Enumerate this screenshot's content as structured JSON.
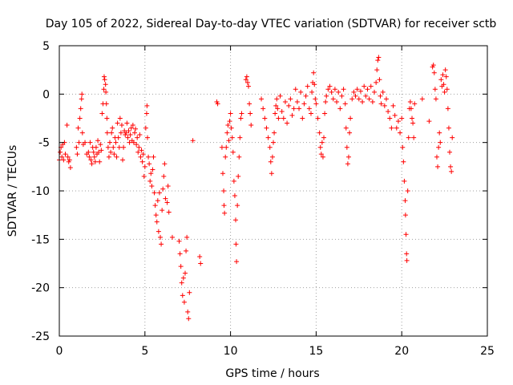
{
  "chart_data": {
    "type": "scatter",
    "title": "Day 105 of 2022, Sidereal Day-to-day VTEC variation (SDTVAR) for receiver sctb",
    "xlabel": "GPS time / hours",
    "ylabel": "SDTVAR / TECUs",
    "xlim": [
      0,
      25
    ],
    "ylim": [
      -25,
      5
    ],
    "xticks": [
      0,
      5,
      10,
      15,
      20,
      25
    ],
    "xtick_labels": [
      "0",
      "5",
      "10",
      "15",
      "20",
      "25"
    ],
    "yticks": [
      -25,
      -20,
      -15,
      -10,
      -5,
      0,
      5
    ],
    "ytick_labels": [
      "-25",
      "-20",
      "-15",
      "-10",
      "-5",
      "0",
      "5"
    ],
    "grid": true,
    "marker": "+",
    "color": "#ff0000",
    "series": [
      {
        "name": "sctb",
        "points": [
          [
            0.0,
            -6.8
          ],
          [
            0.05,
            -6.0
          ],
          [
            0.1,
            -5.5
          ],
          [
            0.15,
            -6.5
          ],
          [
            0.2,
            -5.2
          ],
          [
            0.25,
            -6.8
          ],
          [
            0.3,
            -5.0
          ],
          [
            0.35,
            -6.2
          ],
          [
            0.45,
            -3.2
          ],
          [
            0.5,
            -6.5
          ],
          [
            0.55,
            -7.0
          ],
          [
            0.6,
            -6.8
          ],
          [
            0.65,
            -7.6
          ],
          [
            1.0,
            -5.5
          ],
          [
            1.05,
            -6.2
          ],
          [
            1.1,
            -3.5
          ],
          [
            1.15,
            -5.0
          ],
          [
            1.2,
            -2.5
          ],
          [
            1.25,
            -1.5
          ],
          [
            1.3,
            -0.5
          ],
          [
            1.32,
            0.0
          ],
          [
            1.35,
            -4.0
          ],
          [
            1.4,
            -5.2
          ],
          [
            1.5,
            -5.0
          ],
          [
            1.6,
            -6.2
          ],
          [
            1.7,
            -6.0
          ],
          [
            1.75,
            -6.5
          ],
          [
            1.8,
            -5.0
          ],
          [
            1.85,
            -6.8
          ],
          [
            1.9,
            -7.2
          ],
          [
            1.95,
            -5.5
          ],
          [
            2.0,
            -6.0
          ],
          [
            2.05,
            -6.5
          ],
          [
            2.1,
            -7.0
          ],
          [
            2.15,
            -5.5
          ],
          [
            2.2,
            -6.2
          ],
          [
            2.25,
            -4.8
          ],
          [
            2.3,
            -6.0
          ],
          [
            2.35,
            -7.0
          ],
          [
            2.4,
            -5.2
          ],
          [
            2.45,
            -5.8
          ],
          [
            2.5,
            -2.0
          ],
          [
            2.55,
            -1.0
          ],
          [
            2.6,
            0.5
          ],
          [
            2.62,
            1.8
          ],
          [
            2.65,
            1.5
          ],
          [
            2.7,
            1.0
          ],
          [
            2.72,
            0.2
          ],
          [
            2.75,
            -1.0
          ],
          [
            2.78,
            -2.5
          ],
          [
            2.8,
            -4.0
          ],
          [
            2.85,
            -5.5
          ],
          [
            2.9,
            -6.5
          ],
          [
            2.95,
            -5.0
          ],
          [
            3.0,
            -6.0
          ],
          [
            3.05,
            -4.0
          ],
          [
            3.1,
            -3.5
          ],
          [
            3.15,
            -5.5
          ],
          [
            3.2,
            -6.2
          ],
          [
            3.25,
            -4.5
          ],
          [
            3.3,
            -5.0
          ],
          [
            3.35,
            -6.5
          ],
          [
            3.4,
            -3.0
          ],
          [
            3.45,
            -4.5
          ],
          [
            3.5,
            -5.5
          ],
          [
            3.55,
            -2.5
          ],
          [
            3.6,
            -4.0
          ],
          [
            3.65,
            -3.2
          ],
          [
            3.7,
            -6.8
          ],
          [
            3.75,
            -5.5
          ],
          [
            3.8,
            -3.8
          ],
          [
            3.85,
            -4.2
          ],
          [
            3.9,
            -4.0
          ],
          [
            3.95,
            -3.0
          ],
          [
            4.0,
            -4.5
          ],
          [
            4.05,
            -3.8
          ],
          [
            4.1,
            -5.0
          ],
          [
            4.15,
            -4.2
          ],
          [
            4.2,
            -3.5
          ],
          [
            4.25,
            -4.8
          ],
          [
            4.3,
            -3.2
          ],
          [
            4.35,
            -5.0
          ],
          [
            4.4,
            -4.0
          ],
          [
            4.45,
            -3.6
          ],
          [
            4.5,
            -5.2
          ],
          [
            4.55,
            -4.5
          ],
          [
            4.6,
            -6.0
          ],
          [
            4.65,
            -5.5
          ],
          [
            4.7,
            -4.2
          ],
          [
            4.75,
            -6.5
          ],
          [
            4.8,
            -5.8
          ],
          [
            4.85,
            -7.0
          ],
          [
            4.9,
            -6.2
          ],
          [
            4.95,
            -8.5
          ],
          [
            5.0,
            -7.5
          ],
          [
            5.05,
            -3.5
          ],
          [
            5.1,
            -2.0
          ],
          [
            5.12,
            -1.2
          ],
          [
            5.15,
            -4.5
          ],
          [
            5.2,
            -6.5
          ],
          [
            5.25,
            -7.2
          ],
          [
            5.3,
            -9.0
          ],
          [
            5.35,
            -8.2
          ],
          [
            5.4,
            -9.5
          ],
          [
            5.45,
            -7.8
          ],
          [
            5.5,
            -6.5
          ],
          [
            5.55,
            -10.2
          ],
          [
            5.6,
            -11.5
          ],
          [
            5.65,
            -12.5
          ],
          [
            5.7,
            -13.2
          ],
          [
            5.75,
            -11.0
          ],
          [
            5.8,
            -14.2
          ],
          [
            5.85,
            -10.2
          ],
          [
            5.9,
            -14.8
          ],
          [
            5.95,
            -15.5
          ],
          [
            6.0,
            -12.0
          ],
          [
            6.05,
            -9.8
          ],
          [
            6.1,
            -8.5
          ],
          [
            6.15,
            -7.2
          ],
          [
            6.2,
            -10.8
          ],
          [
            6.3,
            -11.2
          ],
          [
            6.35,
            -9.5
          ],
          [
            6.4,
            -12.2
          ],
          [
            6.6,
            -14.8
          ],
          [
            7.0,
            -15.2
          ],
          [
            7.05,
            -16.5
          ],
          [
            7.1,
            -17.8
          ],
          [
            7.15,
            -19.5
          ],
          [
            7.2,
            -20.8
          ],
          [
            7.25,
            -19.0
          ],
          [
            7.3,
            -21.5
          ],
          [
            7.35,
            -18.5
          ],
          [
            7.4,
            -16.2
          ],
          [
            7.45,
            -14.8
          ],
          [
            7.5,
            -22.5
          ],
          [
            7.55,
            -23.2
          ],
          [
            7.6,
            -20.5
          ],
          [
            7.8,
            -4.8
          ],
          [
            8.2,
            -16.8
          ],
          [
            8.25,
            -17.5
          ],
          [
            9.2,
            -0.8
          ],
          [
            9.25,
            -1.0
          ],
          [
            9.5,
            -5.5
          ],
          [
            9.55,
            -8.2
          ],
          [
            9.6,
            -10.0
          ],
          [
            9.62,
            -11.5
          ],
          [
            9.65,
            -12.3
          ],
          [
            9.7,
            -6.5
          ],
          [
            9.75,
            -5.5
          ],
          [
            9.8,
            -4.0
          ],
          [
            9.85,
            -3.2
          ],
          [
            9.9,
            -4.8
          ],
          [
            9.95,
            -2.8
          ],
          [
            10.0,
            -2.0
          ],
          [
            10.05,
            -3.5
          ],
          [
            10.1,
            -4.5
          ],
          [
            10.15,
            -6.0
          ],
          [
            10.2,
            -9.0
          ],
          [
            10.25,
            -10.5
          ],
          [
            10.3,
            -13.0
          ],
          [
            10.32,
            -15.5
          ],
          [
            10.35,
            -17.3
          ],
          [
            10.4,
            -11.5
          ],
          [
            10.45,
            -8.5
          ],
          [
            10.5,
            -6.5
          ],
          [
            10.55,
            -4.5
          ],
          [
            10.6,
            -2.5
          ],
          [
            10.65,
            -2.0
          ],
          [
            10.9,
            1.5
          ],
          [
            10.95,
            1.8
          ],
          [
            11.0,
            1.2
          ],
          [
            11.05,
            0.8
          ],
          [
            11.1,
            -1.0
          ],
          [
            11.15,
            -2.0
          ],
          [
            11.2,
            -3.2
          ],
          [
            11.8,
            -0.5
          ],
          [
            11.9,
            -1.5
          ],
          [
            12.0,
            -2.5
          ],
          [
            12.1,
            -3.5
          ],
          [
            12.2,
            -4.5
          ],
          [
            12.3,
            -5.5
          ],
          [
            12.35,
            -7.0
          ],
          [
            12.4,
            -8.2
          ],
          [
            12.45,
            -6.5
          ],
          [
            12.5,
            -5.0
          ],
          [
            12.55,
            -4.0
          ],
          [
            12.6,
            -2.0
          ],
          [
            12.65,
            -1.2
          ],
          [
            12.7,
            -0.5
          ],
          [
            12.75,
            -1.5
          ],
          [
            12.8,
            -2.5
          ],
          [
            12.9,
            -0.2
          ],
          [
            13.0,
            -1.8
          ],
          [
            13.1,
            -2.5
          ],
          [
            13.2,
            -0.8
          ],
          [
            13.3,
            -3.0
          ],
          [
            13.4,
            -1.2
          ],
          [
            13.5,
            -0.5
          ],
          [
            13.6,
            -2.2
          ],
          [
            13.7,
            -1.5
          ],
          [
            13.8,
            0.5
          ],
          [
            13.9,
            -0.8
          ],
          [
            14.0,
            -1.5
          ],
          [
            14.1,
            0.2
          ],
          [
            14.2,
            -2.5
          ],
          [
            14.3,
            -1.0
          ],
          [
            14.4,
            -0.2
          ],
          [
            14.5,
            0.8
          ],
          [
            14.6,
            -1.5
          ],
          [
            14.7,
            -2.0
          ],
          [
            14.75,
            0.2
          ],
          [
            14.8,
            1.2
          ],
          [
            14.85,
            2.2
          ],
          [
            14.9,
            1.0
          ],
          [
            14.95,
            -0.5
          ],
          [
            15.0,
            -1.0
          ],
          [
            15.1,
            -2.5
          ],
          [
            15.2,
            -4.0
          ],
          [
            15.25,
            -5.5
          ],
          [
            15.3,
            -6.2
          ],
          [
            15.35,
            -5.0
          ],
          [
            15.4,
            -6.5
          ],
          [
            15.45,
            -4.5
          ],
          [
            15.5,
            -2.0
          ],
          [
            15.55,
            -0.8
          ],
          [
            15.6,
            -0.2
          ],
          [
            15.7,
            0.5
          ],
          [
            15.8,
            0.8
          ],
          [
            15.9,
            0.2
          ],
          [
            16.0,
            -0.5
          ],
          [
            16.1,
            0.5
          ],
          [
            16.2,
            -0.8
          ],
          [
            16.3,
            0.2
          ],
          [
            16.4,
            -1.5
          ],
          [
            16.5,
            -0.2
          ],
          [
            16.6,
            0.5
          ],
          [
            16.7,
            -1.0
          ],
          [
            16.75,
            -3.5
          ],
          [
            16.8,
            -5.5
          ],
          [
            16.85,
            -7.2
          ],
          [
            16.9,
            -6.5
          ],
          [
            16.95,
            -4.0
          ],
          [
            17.0,
            -2.5
          ],
          [
            17.1,
            -0.5
          ],
          [
            17.2,
            0.2
          ],
          [
            17.3,
            -0.2
          ],
          [
            17.4,
            0.5
          ],
          [
            17.5,
            -0.5
          ],
          [
            17.6,
            0.3
          ],
          [
            17.7,
            -0.8
          ],
          [
            17.8,
            0.8
          ],
          [
            17.9,
            -0.2
          ],
          [
            18.0,
            0.5
          ],
          [
            18.1,
            -0.5
          ],
          [
            18.2,
            0.8
          ],
          [
            18.3,
            -0.8
          ],
          [
            18.4,
            0.2
          ],
          [
            18.5,
            1.2
          ],
          [
            18.55,
            2.5
          ],
          [
            18.6,
            3.5
          ],
          [
            18.65,
            3.8
          ],
          [
            18.7,
            1.5
          ],
          [
            18.75,
            -0.2
          ],
          [
            18.8,
            -1.0
          ],
          [
            18.9,
            0.2
          ],
          [
            19.0,
            -1.2
          ],
          [
            19.1,
            -0.5
          ],
          [
            19.2,
            -1.8
          ],
          [
            19.3,
            -2.5
          ],
          [
            19.4,
            -3.5
          ],
          [
            19.5,
            -1.2
          ],
          [
            19.6,
            -2.2
          ],
          [
            19.7,
            -3.5
          ],
          [
            19.8,
            -2.8
          ],
          [
            19.9,
            -4.0
          ],
          [
            20.0,
            -2.5
          ],
          [
            20.05,
            -5.5
          ],
          [
            20.1,
            -7.0
          ],
          [
            20.15,
            -9.0
          ],
          [
            20.2,
            -11.0
          ],
          [
            20.22,
            -12.5
          ],
          [
            20.25,
            -14.5
          ],
          [
            20.28,
            -16.5
          ],
          [
            20.3,
            -17.2
          ],
          [
            20.35,
            -10.0
          ],
          [
            20.4,
            -4.5
          ],
          [
            20.45,
            -1.5
          ],
          [
            20.5,
            -0.8
          ],
          [
            20.55,
            -1.5
          ],
          [
            20.6,
            -2.5
          ],
          [
            20.65,
            -3.0
          ],
          [
            20.7,
            -4.5
          ],
          [
            20.75,
            -1.0
          ],
          [
            21.2,
            -0.5
          ],
          [
            21.6,
            -2.8
          ],
          [
            21.8,
            2.8
          ],
          [
            21.85,
            3.0
          ],
          [
            21.9,
            2.2
          ],
          [
            21.95,
            0.5
          ],
          [
            22.0,
            -0.5
          ],
          [
            22.05,
            -6.5
          ],
          [
            22.1,
            -7.5
          ],
          [
            22.15,
            -5.5
          ],
          [
            22.2,
            -4.0
          ],
          [
            22.25,
            -5.0
          ],
          [
            22.3,
            1.5
          ],
          [
            22.35,
            0.8
          ],
          [
            22.4,
            2.0
          ],
          [
            22.45,
            1.0
          ],
          [
            22.5,
            0.2
          ],
          [
            22.55,
            2.5
          ],
          [
            22.6,
            1.8
          ],
          [
            22.65,
            0.5
          ],
          [
            22.7,
            -1.5
          ],
          [
            22.75,
            -3.5
          ],
          [
            22.8,
            -6.0
          ],
          [
            22.85,
            -7.5
          ],
          [
            22.9,
            -8.0
          ],
          [
            22.95,
            -4.5
          ]
        ]
      }
    ]
  }
}
